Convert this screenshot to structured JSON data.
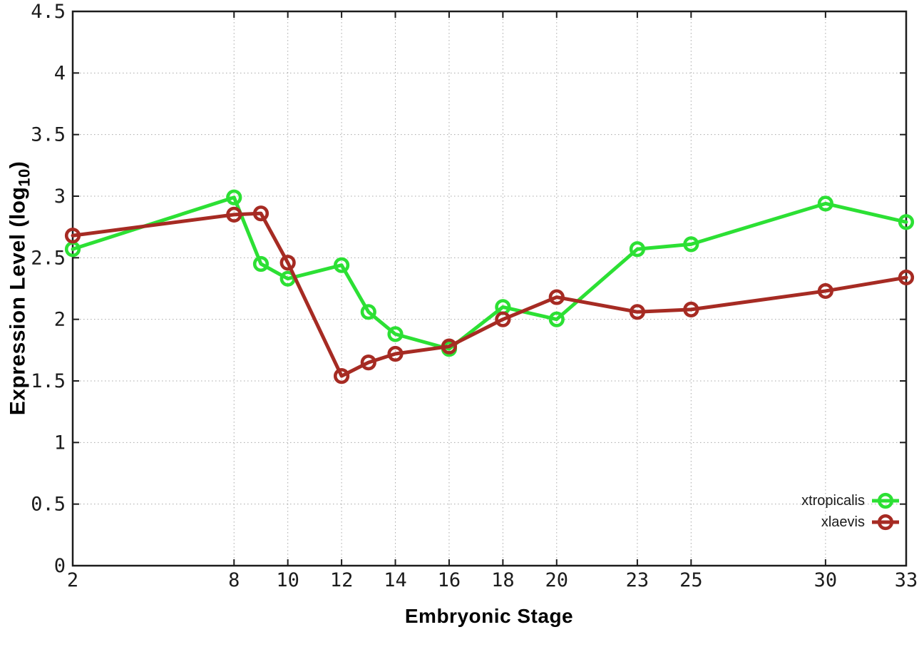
{
  "chart_data": {
    "type": "line",
    "title": "",
    "xlabel": "Embryonic Stage",
    "ylabel": "Expression Level (log10)",
    "ylabel_parts": {
      "main": "Expression Level (log",
      "sub": "10",
      "close": ")"
    },
    "x": [
      2,
      8,
      9,
      10,
      12,
      13,
      14,
      16,
      18,
      20,
      23,
      25,
      30,
      33
    ],
    "series": [
      {
        "name": "xtropicalis",
        "color": "#2ce034",
        "values": [
          2.57,
          2.99,
          2.45,
          2.33,
          2.44,
          2.06,
          1.88,
          1.76,
          2.1,
          2.0,
          2.57,
          2.61,
          2.94,
          2.79
        ]
      },
      {
        "name": "xlaevis",
        "color": "#a62b23",
        "values": [
          2.68,
          2.85,
          2.86,
          2.46,
          1.54,
          1.65,
          1.72,
          1.78,
          2.0,
          2.18,
          2.06,
          2.08,
          2.23,
          2.34
        ]
      }
    ],
    "xticks": [
      "2",
      "8",
      "10",
      "12",
      "14",
      "16",
      "18",
      "20",
      "23",
      "25",
      "30",
      "33"
    ],
    "yticks": [
      "0",
      "0.5",
      "1",
      "1.5",
      "2",
      "2.5",
      "3",
      "3.5",
      "4",
      "4.5"
    ],
    "xlim": [
      2,
      33
    ],
    "ylim": [
      0,
      4.5
    ],
    "grid": true,
    "legend_position": "bottom-right"
  },
  "colors": {
    "background": "#ffffff",
    "axis": "#1c1c1c",
    "grid": "#a8a8a8",
    "tick_label": "#1c1c1c"
  }
}
